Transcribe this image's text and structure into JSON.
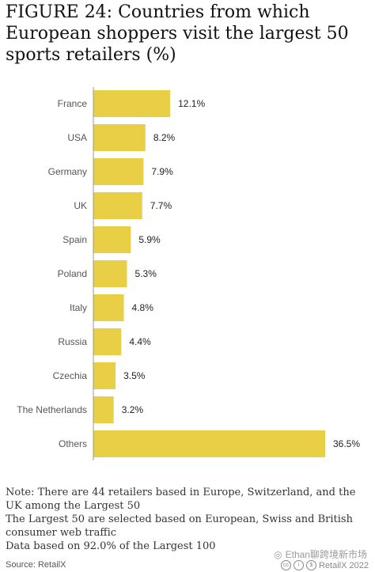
{
  "title": "FIGURE 24: Countries from which European shoppers visit the largest 50 sports retailers (%)",
  "notes": [
    "Note: There are 44 retailers based in Europe, Switzerland, and the UK among the Largest 50",
    "The Largest 50 are selected based on European, Swiss and British consumer web traffic",
    "Data based on 92.0% of the Largest 100"
  ],
  "source": "Source: RetailX",
  "credit": "RetailX 2022",
  "watermark": "Ethan聊跨境新市场",
  "colors": {
    "bar": "#e9cf45",
    "axis": "#999999",
    "label": "#555555",
    "value": "#222222"
  },
  "chart_data": {
    "type": "bar",
    "orientation": "horizontal",
    "categories": [
      "France",
      "USA",
      "Germany",
      "UK",
      "Spain",
      "Poland",
      "Italy",
      "Russia",
      "Czechia",
      "The Netherlands",
      "Others"
    ],
    "values": [
      12.1,
      8.2,
      7.9,
      7.7,
      5.9,
      5.3,
      4.8,
      4.4,
      3.5,
      3.2,
      36.5
    ],
    "value_labels": [
      "12.1%",
      "8.2%",
      "7.9%",
      "7.7%",
      "5.9%",
      "5.3%",
      "4.8%",
      "4.4%",
      "3.5%",
      "3.2%",
      "36.5%"
    ],
    "xlim": [
      0,
      36.5
    ],
    "grid": false,
    "legend": "none"
  }
}
